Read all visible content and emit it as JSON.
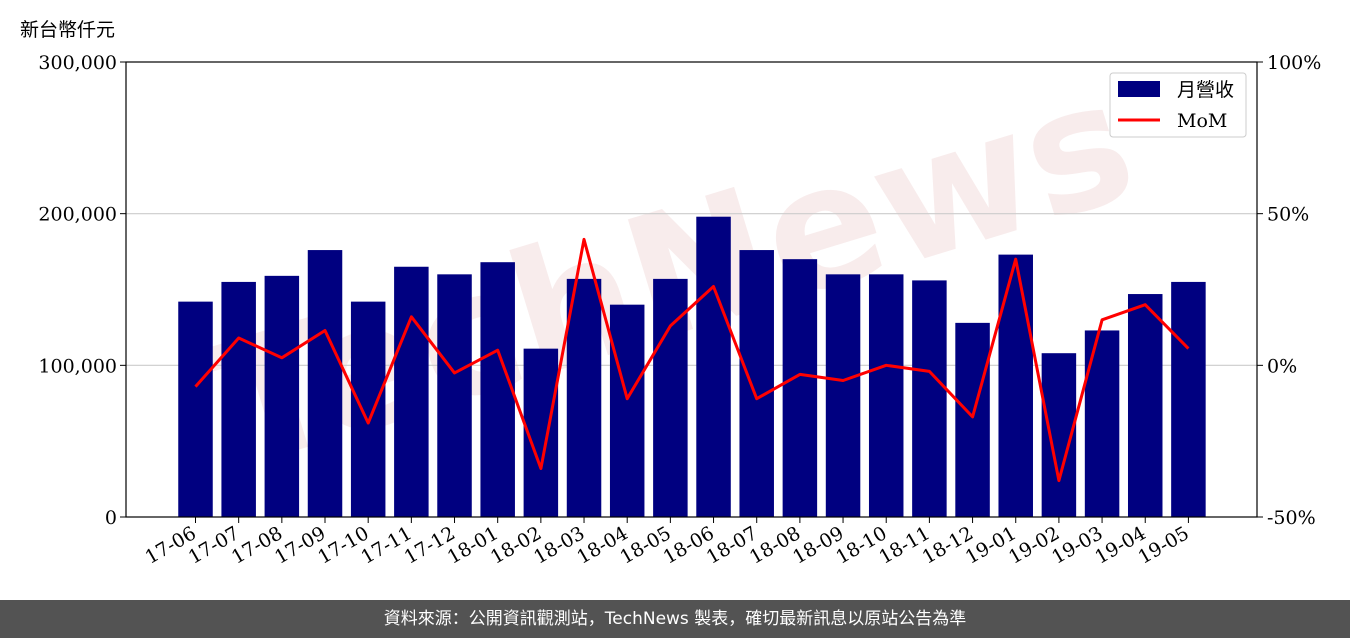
{
  "chart_data": {
    "type": "bar",
    "ylabel": "新台幣仟元",
    "categories": [
      "17-06",
      "17-07",
      "17-08",
      "17-09",
      "17-10",
      "17-11",
      "17-12",
      "18-01",
      "18-02",
      "18-03",
      "18-04",
      "18-05",
      "18-06",
      "18-07",
      "18-08",
      "18-09",
      "18-10",
      "18-11",
      "18-12",
      "19-01",
      "19-02",
      "19-03",
      "19-04",
      "19-05"
    ],
    "series": [
      {
        "name": "月營收",
        "axis": "left",
        "type": "bar",
        "color": "#000080",
        "values": [
          142000,
          155000,
          159000,
          176000,
          142000,
          165000,
          160000,
          168000,
          111000,
          157000,
          140000,
          157000,
          198000,
          176000,
          170000,
          160000,
          160000,
          156000,
          128000,
          173000,
          108000,
          123000,
          147000,
          155000
        ]
      },
      {
        "name": "MoM",
        "axis": "right",
        "type": "line",
        "color": "#ff0000",
        "unit": "%",
        "values": [
          -7,
          9,
          2.5,
          11.5,
          -19,
          16,
          -2.5,
          5,
          -34,
          41.5,
          -11,
          13,
          26,
          -11,
          -3,
          -5,
          0,
          -2,
          -17,
          35,
          -38,
          15,
          20,
          5.5
        ]
      }
    ],
    "ylim": [
      0,
      300000
    ],
    "y2lim": [
      -50,
      100
    ],
    "y_ticks": [
      "0",
      "100,000",
      "200,000",
      "300,000"
    ],
    "y2_ticks": [
      "-50%",
      "0%",
      "50%",
      "100%"
    ],
    "grid": "horizontal",
    "legend": "top-right"
  },
  "watermark": "TechNews",
  "footer": "資料來源：公開資訊觀測站，TechNews 製表，確切最新訊息以原站公告為準"
}
